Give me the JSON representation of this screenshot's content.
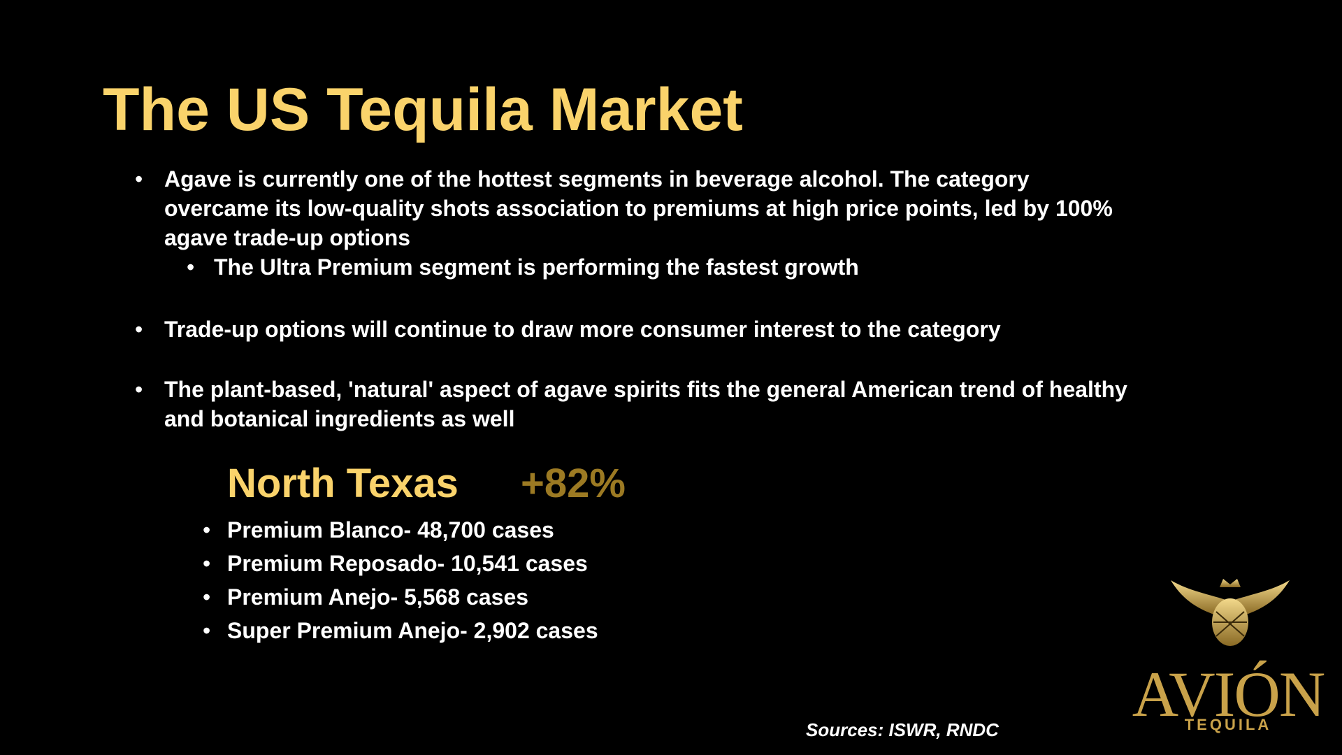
{
  "header": {
    "title": "The US Tequila Market"
  },
  "bullets": [
    {
      "text": "Agave is currently one of the hottest segments in beverage alcohol. The category overcame its low-quality shots association to premiums at high price points, led by 100% agave trade-up options",
      "sub": [
        "The Ultra Premium segment is performing the fastest growth"
      ]
    },
    {
      "text": "Trade-up options will continue to draw more consumer interest to the category"
    },
    {
      "text": "The plant-based, 'natural' aspect of agave spirits fits the general American trend of healthy and botanical ingredients as well"
    }
  ],
  "region": {
    "name": "North Texas",
    "growth": "+82%",
    "items": [
      "Premium Blanco- 48,700 cases",
      "Premium Reposado- 10,541 cases",
      "Premium Anejo- 5,568 cases",
      "Super Premium Anejo- 2,902 cases"
    ]
  },
  "sources": "Sources:  ISWR, RNDC",
  "logo": {
    "brand": "AVIÓN",
    "tagline": "TEQUILA"
  }
}
